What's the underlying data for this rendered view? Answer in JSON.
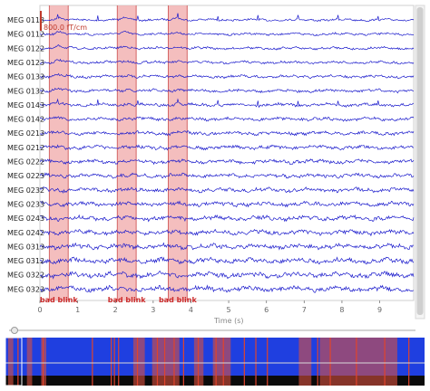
{
  "channels": [
    "MEG 0113",
    "MEG 0112",
    "MEG 0122",
    "MEG 0123",
    "MEG 0133",
    "MEG 0132",
    "MEG 0143",
    "MEG 0142",
    "MEG 0213",
    "MEG 0212",
    "MEG 0222",
    "MEG 0223",
    "MEG 0232",
    "MEG 0233",
    "MEG 0243",
    "MEG 0242",
    "MEG 0313",
    "MEG 0312",
    "MEG 0322",
    "MEG 0323"
  ],
  "scale_bar": {
    "label": "800.0 fT/cm"
  },
  "x_axis": {
    "ticks": [
      "0",
      "1",
      "2",
      "3",
      "4",
      "5",
      "6",
      "7",
      "8",
      "9"
    ],
    "range": [
      0,
      9.9
    ],
    "label": "Time (s)"
  },
  "annotations": [
    {
      "label": "bad blink",
      "start": 0.25,
      "end": 0.75
    },
    {
      "label": "bad blink",
      "start": 2.05,
      "end": 2.55
    },
    {
      "label": "bad blink",
      "start": 3.4,
      "end": 3.9
    }
  ],
  "colors": {
    "trace": "#1a1acc",
    "annotation_fill": "#f2b3b3",
    "annotation_edge": "#d46565",
    "annotation_text": "#cc2b2b",
    "overview_bg": "#1f3fe0",
    "overview_low": "#0b0b0b"
  },
  "overview": {
    "bad_bands": [
      {
        "start": 0.25,
        "end": 0.75
      },
      {
        "start": 2.05,
        "end": 2.55
      },
      {
        "start": 3.4,
        "end": 3.9
      },
      {
        "start": 12.2,
        "end": 13.3
      },
      {
        "start": 14.0,
        "end": 16.6
      },
      {
        "start": 18.0,
        "end": 18.9
      },
      {
        "start": 19.8,
        "end": 21.5
      },
      {
        "start": 28.0,
        "end": 29.2
      },
      {
        "start": 30.0,
        "end": 37.4
      }
    ],
    "event_lines": [
      1.2,
      3.6,
      8.3,
      10.1,
      10.4,
      10.8,
      12.6,
      14.5,
      15.2,
      16.1,
      17.0,
      18.4,
      20.1,
      20.8,
      22.8,
      23.9,
      25.0,
      29.8,
      31.0,
      33.5,
      36.2,
      38.5
    ],
    "duration": 40
  }
}
